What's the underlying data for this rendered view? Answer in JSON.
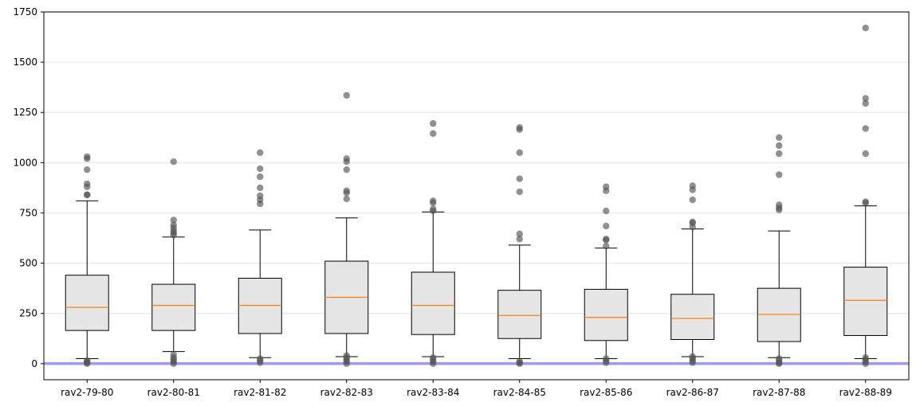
{
  "chart_data": {
    "type": "box",
    "title": "",
    "xlabel": "",
    "ylabel": "",
    "ylim": [
      -80,
      1750
    ],
    "yticks": [
      0,
      250,
      500,
      750,
      1000,
      1250,
      1500,
      1750
    ],
    "ytick_labels": [
      "0",
      "250",
      "500",
      "750",
      "1000",
      "1250",
      "1500",
      "1750"
    ],
    "grid": "horizontal",
    "reference_line": {
      "y": 0,
      "color": "#9999ff"
    },
    "colors": {
      "box_fill": "#e5e5e5",
      "median": "#ff7f0e",
      "outlier": "#555555",
      "reference": "#9999ff"
    },
    "categories": [
      "rav2-79-80",
      "rav2-80-81",
      "rav2-81-82",
      "rav2-82-83",
      "rav2-83-84",
      "rav2-84-85",
      "rav2-85-86",
      "rav2-86-87",
      "rav2-87-88",
      "rav2-88-89"
    ],
    "boxes": [
      {
        "whislo": 25,
        "q1": 165,
        "med": 280,
        "q3": 440,
        "whishi": 810,
        "fliers": [
          0,
          5,
          10,
          15,
          840,
          840,
          880,
          895,
          965,
          1020,
          1030
        ]
      },
      {
        "whislo": 60,
        "q1": 165,
        "med": 290,
        "q3": 395,
        "whishi": 630,
        "fliers": [
          0,
          10,
          20,
          30,
          45,
          640,
          650,
          660,
          675,
          690,
          715,
          1005
        ]
      },
      {
        "whislo": 30,
        "q1": 150,
        "med": 290,
        "q3": 425,
        "whishi": 665,
        "fliers": [
          5,
          15,
          25,
          795,
          815,
          835,
          875,
          930,
          970,
          1050
        ]
      },
      {
        "whislo": 35,
        "q1": 150,
        "med": 330,
        "q3": 510,
        "whishi": 725,
        "fliers": [
          0,
          10,
          20,
          30,
          40,
          820,
          850,
          860,
          965,
          1005,
          1020,
          1335
        ]
      },
      {
        "whislo": 35,
        "q1": 145,
        "med": 290,
        "q3": 455,
        "whishi": 755,
        "fliers": [
          0,
          10,
          20,
          30,
          760,
          770,
          800,
          810,
          1145,
          1195
        ]
      },
      {
        "whislo": 25,
        "q1": 125,
        "med": 240,
        "q3": 365,
        "whishi": 590,
        "fliers": [
          0,
          5,
          10,
          620,
          645,
          855,
          920,
          1050,
          1165,
          1175
        ]
      },
      {
        "whislo": 25,
        "q1": 115,
        "med": 230,
        "q3": 370,
        "whishi": 575,
        "fliers": [
          5,
          15,
          25,
          585,
          615,
          620,
          685,
          760,
          860,
          880
        ]
      },
      {
        "whislo": 35,
        "q1": 120,
        "med": 225,
        "q3": 345,
        "whishi": 670,
        "fliers": [
          5,
          15,
          25,
          35,
          680,
          700,
          705,
          815,
          865,
          885
        ]
      },
      {
        "whislo": 30,
        "q1": 110,
        "med": 245,
        "q3": 375,
        "whishi": 660,
        "fliers": [
          0,
          5,
          15,
          25,
          765,
          775,
          790,
          940,
          1045,
          1085,
          1125
        ]
      },
      {
        "whislo": 25,
        "q1": 140,
        "med": 315,
        "q3": 480,
        "whishi": 785,
        "fliers": [
          0,
          10,
          20,
          30,
          800,
          805,
          1045,
          1170,
          1295,
          1320,
          1670
        ]
      }
    ]
  }
}
